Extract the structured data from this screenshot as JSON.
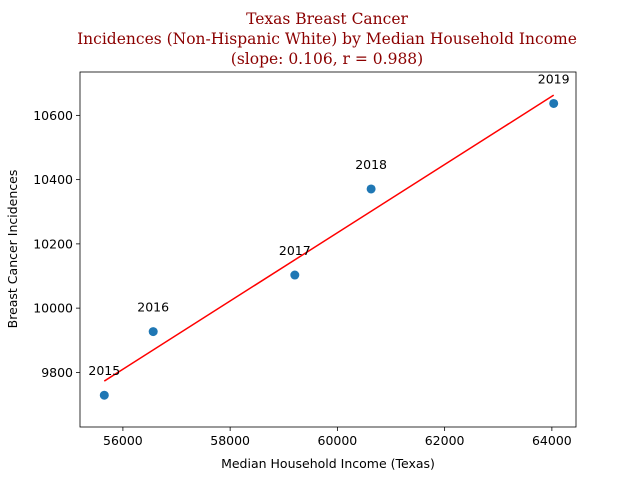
{
  "chart_data": {
    "type": "scatter",
    "title_lines": [
      "Texas Breast Cancer",
      "Incidences (Non-Hispanic White) by Median Household Income",
      "(slope: 0.106, r = 0.988)"
    ],
    "xlabel": "Median Household Income (Texas)",
    "ylabel": "Breast Cancer Incidences",
    "xlim": [
      55200,
      64450
    ],
    "ylim": [
      9630,
      10735
    ],
    "x_ticks": [
      56000,
      58000,
      60000,
      62000,
      64000
    ],
    "y_ticks": [
      9800,
      10000,
      10200,
      10400,
      10600
    ],
    "points": [
      {
        "label": "2015",
        "x": 55653,
        "y": 9729
      },
      {
        "label": "2016",
        "x": 56565,
        "y": 9927
      },
      {
        "label": "2017",
        "x": 59206,
        "y": 10103
      },
      {
        "label": "2018",
        "x": 60629,
        "y": 10371
      },
      {
        "label": "2019",
        "x": 64034,
        "y": 10637
      }
    ],
    "trendline": {
      "x": [
        55653,
        64034
      ],
      "y": [
        9773,
        10663
      ]
    },
    "grid": false,
    "colors": {
      "point": "#1f77b4",
      "trendline": "#ff0000",
      "title": "#8b0000"
    }
  }
}
